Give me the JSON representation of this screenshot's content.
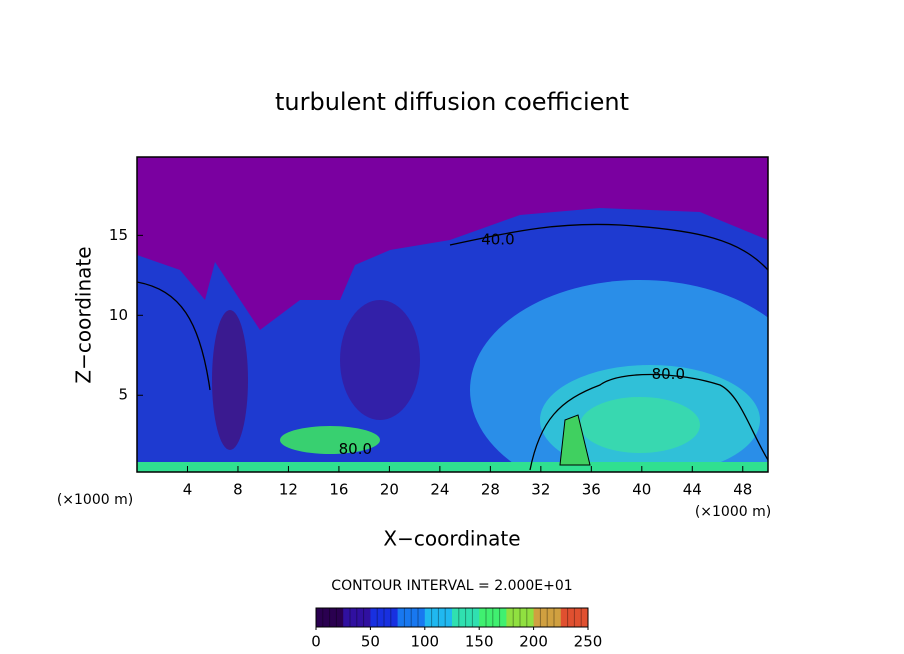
{
  "chart_data": {
    "type": "contour",
    "title": "turbulent diffusion coefficient",
    "xlabel": "X−coordinate",
    "ylabel": "Z−coordinate",
    "x_unit": "(×1000 m)",
    "x_unit_end": "(×1000 m)",
    "xlim": [
      0,
      50
    ],
    "ylim": [
      0.2,
      19.9
    ],
    "xticks": [
      4,
      8,
      12,
      16,
      20,
      24,
      28,
      32,
      36,
      40,
      44,
      48
    ],
    "yticks": [
      5,
      10,
      15
    ],
    "contour_interval_text": "CONTOUR INTERVAL = 2.000E+01",
    "contour_labels": [
      {
        "value": 40,
        "label": "40.0",
        "x": 28.6,
        "y": 14.7
      },
      {
        "value": 80,
        "label": "80.0",
        "x": 42.1,
        "y": 6.3
      },
      {
        "value": 80,
        "label": "80.0",
        "x": 17.3,
        "y": 1.6
      }
    ],
    "clim": [
      0,
      250
    ],
    "cticks": [
      0,
      50,
      100,
      150,
      200,
      250
    ],
    "colormap": [
      "#2a0050",
      "#3010a0",
      "#1830e0",
      "#1878f0",
      "#20b8f0",
      "#30e0b0",
      "#40f070",
      "#90e040",
      "#d0a040",
      "#e05030"
    ]
  }
}
